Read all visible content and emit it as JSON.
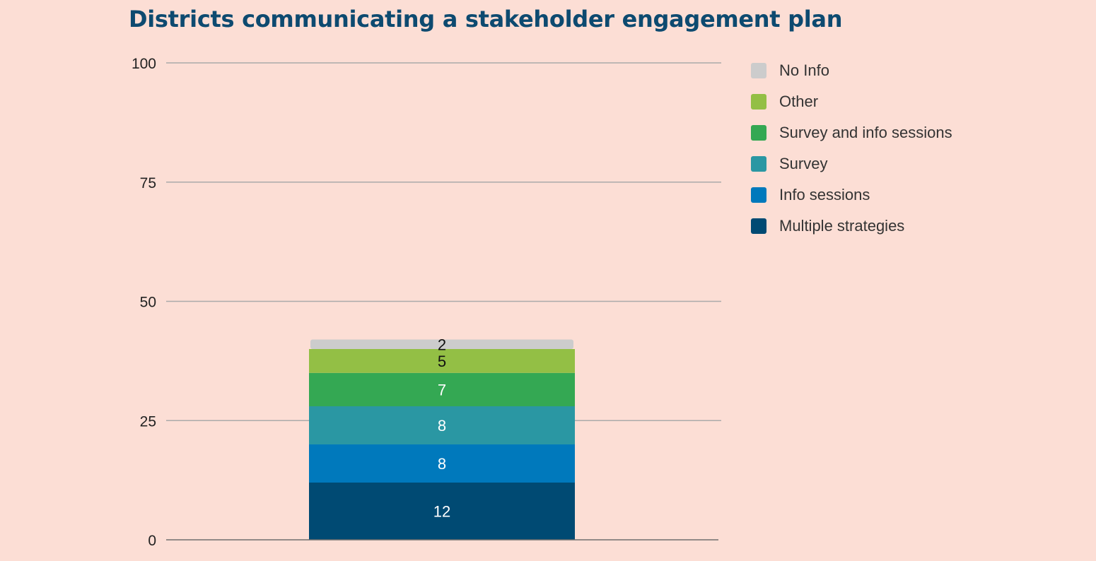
{
  "chart_data": {
    "type": "bar",
    "stacked": true,
    "title": "Districts communicating a stakeholder engagement plan",
    "categories": [
      ""
    ],
    "ylim": [
      0,
      100
    ],
    "yticks": [
      0,
      25,
      50,
      75,
      100
    ],
    "grid": true,
    "legend_position": "right",
    "series": [
      {
        "name": "Multiple strategies",
        "values": [
          12
        ],
        "color": "#004a73",
        "label_color": "#ffffff"
      },
      {
        "name": "Info sessions",
        "values": [
          8
        ],
        "color": "#0079bc",
        "label_color": "#ffffff"
      },
      {
        "name": "Survey",
        "values": [
          8
        ],
        "color": "#2a97a3",
        "label_color": "#ffffff"
      },
      {
        "name": "Survey and info sessions",
        "values": [
          7
        ],
        "color": "#34a853",
        "label_color": "#ffffff"
      },
      {
        "name": "Other",
        "values": [
          5
        ],
        "color": "#93bf45",
        "label_color": "#111111"
      },
      {
        "name": "No Info",
        "values": [
          2
        ],
        "color": "#cccccc",
        "label_color": "#111111"
      }
    ]
  }
}
